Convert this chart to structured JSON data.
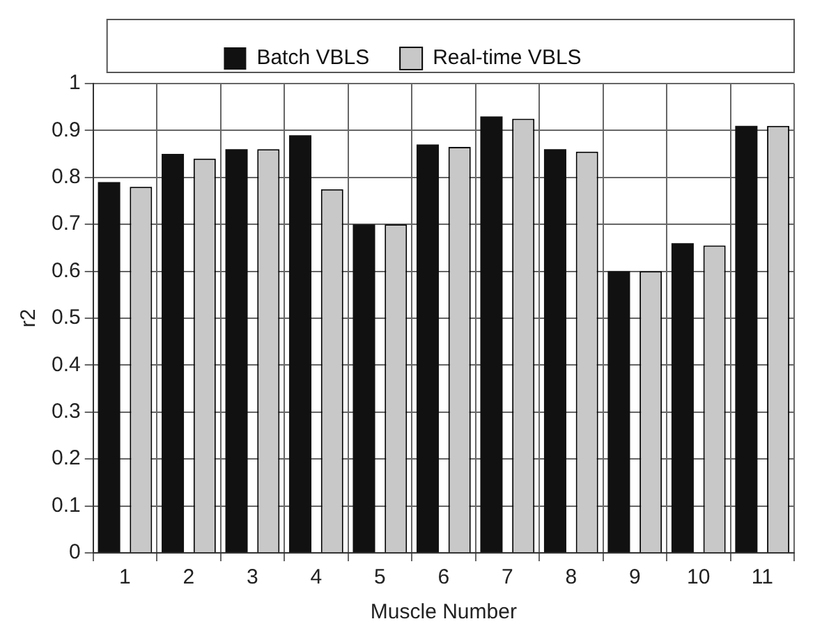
{
  "chart_data": {
    "type": "bar",
    "xlabel": "Muscle Number",
    "ylabel": "r2",
    "categories": [
      "1",
      "2",
      "3",
      "4",
      "5",
      "6",
      "7",
      "8",
      "9",
      "10",
      "11"
    ],
    "series": [
      {
        "name": "Batch VBLS",
        "color": "#111111",
        "values": [
          0.79,
          0.85,
          0.86,
          0.89,
          0.7,
          0.87,
          0.93,
          0.86,
          0.6,
          0.66,
          0.91
        ]
      },
      {
        "name": "Real-time VBLS",
        "color": "#c8c8c8",
        "values": [
          0.78,
          0.84,
          0.86,
          0.775,
          0.7,
          0.865,
          0.925,
          0.855,
          0.6,
          0.655,
          0.91
        ]
      }
    ],
    "ylim": [
      0,
      1
    ],
    "yticks": [
      0,
      0.1,
      0.2,
      0.3,
      0.4,
      0.5,
      0.6,
      0.7,
      0.8,
      0.9,
      1
    ],
    "grid": true,
    "legend": "top"
  }
}
